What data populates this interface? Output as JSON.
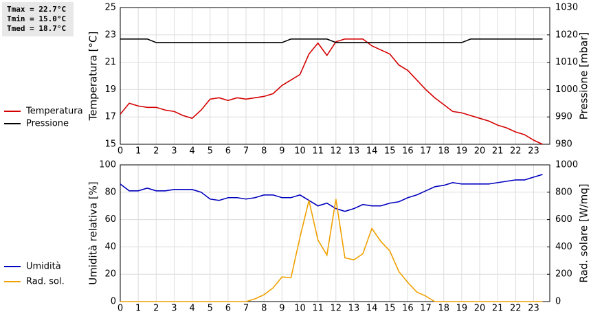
{
  "stats": [
    "Tmax = 22.7°C",
    "Tmin = 15.0°C",
    "Tmed = 18.7°C"
  ],
  "chart_data": [
    {
      "type": "line",
      "ylabel": "Temperatura [°C]",
      "y2label": "Pressione [mbar]",
      "xlim": [
        0,
        23.9
      ],
      "xticks": [
        0,
        1,
        2,
        3,
        4,
        5,
        6,
        7,
        8,
        9,
        10,
        11,
        12,
        13,
        14,
        15,
        16,
        17,
        18,
        19,
        20,
        21,
        22,
        23
      ],
      "ylim": [
        15,
        25
      ],
      "yticks": [
        15,
        17,
        19,
        21,
        23,
        25
      ],
      "y2lim": [
        980,
        1030
      ],
      "y2ticks": [
        980,
        990,
        1000,
        1010,
        1020,
        1030
      ],
      "grid": true,
      "x": [
        0,
        0.5,
        1,
        1.5,
        2,
        2.5,
        3,
        3.5,
        4,
        4.5,
        5,
        5.5,
        6,
        6.5,
        7,
        7.5,
        8,
        8.5,
        9,
        9.5,
        10,
        10.5,
        11,
        11.5,
        12,
        12.5,
        13,
        13.5,
        14,
        14.5,
        15,
        15.5,
        16,
        16.5,
        17,
        17.5,
        18,
        18.5,
        19,
        19.5,
        20,
        20.5,
        21,
        21.5,
        22,
        22.5,
        23,
        23.5
      ],
      "series": [
        {
          "name": "Temperatura",
          "color": "#d40000",
          "values": [
            17.2,
            18.0,
            17.8,
            17.7,
            17.7,
            17.5,
            17.4,
            17.1,
            16.9,
            17.5,
            18.3,
            18.4,
            18.2,
            18.4,
            18.3,
            18.4,
            18.5,
            18.7,
            19.3,
            19.7,
            20.1,
            21.6,
            22.4,
            21.5,
            22.5,
            22.7,
            22.7,
            22.7,
            22.2,
            21.9,
            21.6,
            20.8,
            20.4,
            19.7,
            19.0,
            18.4,
            17.9,
            17.4,
            17.3,
            17.1,
            16.9,
            16.7,
            16.4,
            16.2,
            15.9,
            15.7,
            15.3,
            15.0
          ]
        },
        {
          "name": "Pressione",
          "color": "#000000",
          "axis": "y2",
          "values": [
            1018.5,
            1018.5,
            1018.5,
            1018.5,
            1017.2,
            1017.2,
            1017.2,
            1017.2,
            1017.2,
            1017.2,
            1017.2,
            1017.2,
            1017.2,
            1017.2,
            1017.2,
            1017.2,
            1017.2,
            1017.2,
            1017.2,
            1018.5,
            1018.5,
            1018.5,
            1018.5,
            1018.5,
            1017.2,
            1017.2,
            1017.2,
            1017.2,
            1017.2,
            1017.2,
            1017.2,
            1017.2,
            1017.2,
            1017.2,
            1017.2,
            1017.2,
            1017.2,
            1017.2,
            1017.2,
            1018.5,
            1018.5,
            1018.5,
            1018.5,
            1018.5,
            1018.5,
            1018.5,
            1018.5,
            1018.5
          ]
        }
      ]
    },
    {
      "type": "line",
      "ylabel": "Umidità relativa [%]",
      "y2label": "Rad. solare [W/mq]",
      "xlim": [
        0,
        23.9
      ],
      "xticks": [
        0,
        1,
        2,
        3,
        4,
        5,
        6,
        7,
        8,
        9,
        10,
        11,
        12,
        13,
        14,
        15,
        16,
        17,
        18,
        19,
        20,
        21,
        22,
        23
      ],
      "ylim": [
        0,
        100
      ],
      "yticks": [
        0,
        20,
        40,
        60,
        80,
        100
      ],
      "y2lim": [
        0,
        1000
      ],
      "y2ticks": [
        0,
        200,
        400,
        600,
        800,
        1000
      ],
      "grid": true,
      "x": [
        0,
        0.5,
        1,
        1.5,
        2,
        2.5,
        3,
        3.5,
        4,
        4.5,
        5,
        5.5,
        6,
        6.5,
        7,
        7.5,
        8,
        8.5,
        9,
        9.5,
        10,
        10.5,
        11,
        11.5,
        12,
        12.5,
        13,
        13.5,
        14,
        14.5,
        15,
        15.5,
        16,
        16.5,
        17,
        17.5,
        18,
        18.5,
        19,
        19.5,
        20,
        20.5,
        21,
        21.5,
        22,
        22.5,
        23,
        23.5
      ],
      "series": [
        {
          "name": "Umidità",
          "color": "#0000c0",
          "values": [
            86,
            81,
            81,
            83,
            81,
            81,
            82,
            82,
            82,
            80,
            75,
            74,
            76,
            76,
            75,
            76,
            78,
            78,
            76,
            76,
            78,
            74,
            70,
            72,
            68,
            66,
            68,
            71,
            70,
            70,
            72,
            73,
            76,
            78,
            81,
            84,
            85,
            87,
            86,
            86,
            86,
            86,
            87,
            88,
            89,
            89,
            91,
            93
          ]
        },
        {
          "name": "Rad. sol.",
          "color": "#f0a000",
          "axis": "y2",
          "values": [
            0,
            0,
            0,
            0,
            0,
            0,
            0,
            0,
            0,
            0,
            0,
            0,
            0,
            0,
            0,
            20,
            50,
            100,
            180,
            175,
            470,
            740,
            450,
            340,
            750,
            320,
            305,
            350,
            535,
            440,
            370,
            220,
            140,
            70,
            40,
            0,
            0,
            0,
            0,
            0,
            0,
            0,
            0,
            0,
            0,
            0,
            0,
            0
          ]
        }
      ]
    }
  ]
}
